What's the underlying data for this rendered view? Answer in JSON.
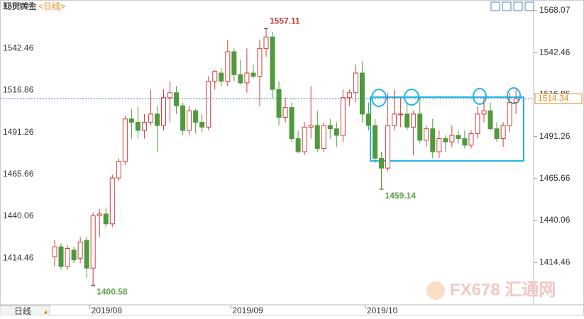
{
  "chart_data": {
    "type": "candlestick",
    "title": "现货黄金",
    "subtitle": "<日线>",
    "period_tab": "日线",
    "watermark": "FX678 汇通网",
    "categories": [
      null,
      null,
      null,
      null,
      null,
      null,
      "2019/08",
      null,
      null,
      null,
      null,
      null,
      null,
      null,
      null,
      null,
      null,
      null,
      null,
      null,
      null,
      null,
      null,
      null,
      null,
      null,
      null,
      null,
      "2019/09",
      null,
      null,
      null,
      null,
      null,
      null,
      null,
      null,
      null,
      null,
      null,
      null,
      null,
      null,
      null,
      null,
      null,
      null,
      null,
      null,
      "2019/10",
      null,
      null,
      null,
      null,
      null,
      null,
      null,
      null,
      null,
      null,
      null,
      null,
      null,
      null,
      null,
      null,
      null,
      null,
      null,
      null,
      null,
      null,
      null
    ],
    "open": [
      1418,
      1424,
      1412,
      1422,
      1417,
      1428,
      1411,
      1443,
      1444,
      1438,
      1466,
      1476,
      1502,
      1500,
      1495,
      1500,
      1505,
      1498,
      1515,
      1518,
      1510,
      1495,
      1507,
      1500,
      1497,
      1525,
      1530,
      1525,
      1543,
      1529,
      1524,
      1530,
      1528,
      1545,
      1552,
      1520,
      1503,
      1509,
      1490,
      1482,
      1497,
      1498,
      1484,
      1498,
      1496,
      1492,
      1515,
      1518,
      1530,
      1505,
      1498,
      1478,
      1472,
      1498,
      1505,
      1505,
      1497,
      1505,
      1489,
      1496,
      1482,
      1490,
      1488,
      1492,
      1490,
      1486,
      1493,
      1505,
      1507,
      1496,
      1490,
      1498,
      1512
    ],
    "high": [
      1428,
      1426,
      1425,
      1424,
      1430,
      1430,
      1445,
      1447,
      1448,
      1468,
      1478,
      1504,
      1508,
      1510,
      1505,
      1520,
      1510,
      1520,
      1525,
      1522,
      1512,
      1510,
      1508,
      1505,
      1528,
      1532,
      1533,
      1550,
      1545,
      1538,
      1545,
      1535,
      1550,
      1557.11,
      1555,
      1525,
      1515,
      1512,
      1495,
      1500,
      1522,
      1507,
      1500,
      1502,
      1500,
      1520,
      1520,
      1535,
      1537,
      1512,
      1502,
      1482,
      1518,
      1520,
      1515,
      1512,
      1507,
      1515,
      1498,
      1502,
      1495,
      1492,
      1498,
      1495,
      1495,
      1495,
      1510,
      1515,
      1512,
      1500,
      1500,
      1518,
      1520
    ],
    "low": [
      1412,
      1410,
      1410,
      1414,
      1414,
      1405,
      1400.58,
      1430,
      1436,
      1436,
      1464,
      1474,
      1490,
      1490,
      1490,
      1498,
      1482,
      1495,
      1500,
      1505,
      1492,
      1492,
      1493,
      1494,
      1495,
      1520,
      1522,
      1522,
      1525,
      1523,
      1518,
      1527,
      1510,
      1540,
      1515,
      1498,
      1500,
      1488,
      1481,
      1480,
      1490,
      1482,
      1482,
      1490,
      1485,
      1488,
      1510,
      1512,
      1500,
      1495,
      1475,
      1459.14,
      1470,
      1495,
      1497,
      1495,
      1480,
      1487,
      1485,
      1478,
      1478,
      1482,
      1485,
      1487,
      1484,
      1484,
      1490,
      1500,
      1495,
      1488,
      1485,
      1494,
      1505
    ],
    "close": [
      1424,
      1412,
      1423,
      1416,
      1427,
      1411,
      1443,
      1444,
      1438,
      1466,
      1476,
      1502,
      1500,
      1495,
      1500,
      1505,
      1498,
      1515,
      1518,
      1510,
      1495,
      1507,
      1500,
      1497,
      1525,
      1531,
      1525,
      1543,
      1529,
      1524,
      1530,
      1528,
      1545,
      1552,
      1520,
      1503,
      1509,
      1490,
      1482,
      1497,
      1498,
      1484,
      1498,
      1496,
      1492,
      1515,
      1518,
      1530,
      1505,
      1498,
      1478,
      1472,
      1498,
      1505,
      1505,
      1497,
      1505,
      1489,
      1496,
      1482,
      1490,
      1488,
      1492,
      1490,
      1486,
      1493,
      1505,
      1507,
      1496,
      1490,
      1498,
      1512,
      1514.34
    ],
    "up_color": "#d23b3b",
    "down_color": "#4f9a3c",
    "label_up_color": "#c0392b",
    "label_down_color": "#5c9e4a",
    "last_color": "#e8891b",
    "ylim": [
      1388.61,
      1574.56
    ],
    "yticks": [
      1568.07,
      1542.46,
      1516.86,
      1491.26,
      1465.66,
      1440.06,
      1414.46
    ]
  }
}
